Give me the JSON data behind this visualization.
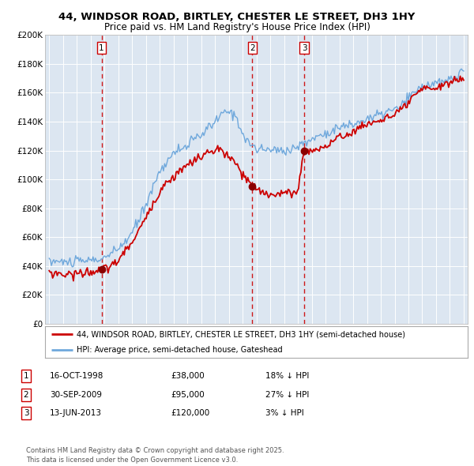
{
  "title": "44, WINDSOR ROAD, BIRTLEY, CHESTER LE STREET, DH3 1HY",
  "subtitle": "Price paid vs. HM Land Registry's House Price Index (HPI)",
  "sale_prices": [
    38000,
    95000,
    120000
  ],
  "sale_labels": [
    "1",
    "2",
    "3"
  ],
  "sale_info": [
    {
      "label": "1",
      "date": "16-OCT-1998",
      "price": "£38,000",
      "pct": "18% ↓ HPI"
    },
    {
      "label": "2",
      "date": "30-SEP-2009",
      "price": "£95,000",
      "pct": "27% ↓ HPI"
    },
    {
      "label": "3",
      "date": "13-JUN-2013",
      "price": "£120,000",
      "pct": "3% ↓ HPI"
    }
  ],
  "legend_line1": "44, WINDSOR ROAD, BIRTLEY, CHESTER LE STREET, DH3 1HY (semi-detached house)",
  "legend_line2": "HPI: Average price, semi-detached house, Gateshead",
  "footer": "Contains HM Land Registry data © Crown copyright and database right 2025.\nThis data is licensed under the Open Government Licence v3.0.",
  "hpi_color": "#6fa8dc",
  "price_color": "#cc0000",
  "sale_dot_color": "#8b0000",
  "vline_color": "#cc0000",
  "plot_bg_color": "#dce6f1",
  "yticks": [
    0,
    20000,
    40000,
    60000,
    80000,
    100000,
    120000,
    140000,
    160000,
    180000,
    200000
  ]
}
